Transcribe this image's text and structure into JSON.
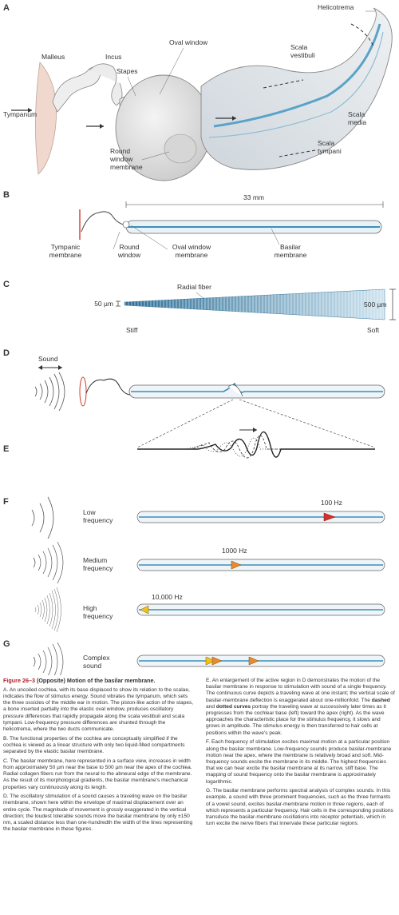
{
  "panels": {
    "a": {
      "letter": "A",
      "labels": {
        "helicotrema": "Helicotrema",
        "malleus": "Malleus",
        "incus": "Incus",
        "oval_window": "Oval window",
        "stapes": "Stapes",
        "scala_vestibuli": "Scala\nvestibuli",
        "tympanum": "Tympanum",
        "scala_media": "Scala\nmedia",
        "round_window_membrane": "Round\nwindow\nmembrane",
        "scala_tympani": "Scala\ntympani"
      }
    },
    "b": {
      "letter": "B",
      "length": "33 mm",
      "labels": {
        "tympanic_membrane": "Tympanic\nmembrane",
        "round_window": "Round\nwindow",
        "oval_window_membrane": "Oval window\nmembrane",
        "basilar_membrane": "Basilar\nmembrane"
      }
    },
    "c": {
      "letter": "C",
      "radial_fiber": "Radial fiber",
      "width_base": "50 µm",
      "width_apex": "500 µm",
      "stiff": "Stiff",
      "soft": "Soft"
    },
    "d": {
      "letter": "D",
      "sound": "Sound"
    },
    "e": {
      "letter": "E"
    },
    "f": {
      "letter": "F",
      "rows": [
        {
          "label": "Low\nfrequency",
          "freq": "100 Hz",
          "color": "#d62f2f"
        },
        {
          "label": "Medium\nfrequency",
          "freq": "1000 Hz",
          "color": "#ea8a2a"
        },
        {
          "label": "High\nfrequency",
          "freq": "10,000 Hz",
          "color": "#f2c21a"
        }
      ]
    },
    "g": {
      "letter": "G",
      "label": "Complex\nsound"
    }
  },
  "caption": {
    "title": "Figure 26–3",
    "title_rest": "(Opposite) Motion of the basilar membrane.",
    "a": "A. An uncoiled cochlea, with its base displaced to show its relation to the scalae, indicates the flow of stimulus energy. Sound vibrates the tympanum, which sets the three ossicles of the middle ear in motion. The piston-like action of the stapes, a bone inserted partially into the elastic oval window, produces oscillatory pressure differences that rapidly propagate along the scala vestibuli and scala tympani. Low-frequency pressure differences are shunted through the helicotrema, where the two ducts communicate.",
    "b": "B. The functional properties of the cochlea are conceptually simplified if the cochlea is viewed as a linear structure with only two liquid-filled compartments separated by the elastic basilar membrane.",
    "c": "C. The basilar membrane, here represented in a surface view, increases in width from approximately 50 µm near the base to 500 µm near the apex of the cochlea. Radial collagen fibers run from the neural to the abneural edge of the membrane. As the result of its morphological gradients, the basilar membrane's mechanical properties vary continuously along its length.",
    "d": "D. The oscillatory stimulation of a sound causes a traveling wave on the basilar membrane, shown here within the envelope of maximal displacement over an entire cycle. The magnitude of movement is grossly exaggerated in the vertical direction; the loudest tolerable sounds move the basilar membrane by only ±150 nm, a scaled distance less than one-hundredth the width of the lines representing the basilar membrane in these figures.",
    "e_pre": "E. An enlargement of the active region in D demonstrates the motion of the basilar membrane in response to stimulation with sound of a single frequency. The continuous curve depicts a traveling wave at one instant; the vertical scale of basilar-membrane deflection is exaggerated about one-millionfold. The",
    "e_dashed": "dashed",
    "e_and": "and",
    "e_dotted": "dotted curves",
    "e_post": "portray the traveling wave at successively later times as it progresses from the cochlear base (left) toward the apex (right). As the wave approaches the characteristic place for the stimulus frequency, it slows and grows in amplitude. The stimulus energy is then transferred to hair cells at positions within the wave's peak.",
    "f": "F. Each frequency of stimulation excites maximal motion at a particular position along the basilar membrane. Low-frequency sounds produce basilar-membrane motion near the apex, where the membrane is relatively broad and soft. Mid-frequency sounds excite the membrane in its middle. The highest frequencies that we can hear excite the basilar membrane at its narrow, stiff base. The mapping of sound frequency onto the basilar membrane is approximately logarithmic.",
    "g": "G. The basilar membrane performs spectral analysis of complex sounds. In this example, a sound with three prominent frequencies, such as the three formants of a vowel sound, excites basilar-membrane motion in three regions, each of which represents a particular frequency. Hair cells in the corresponding positions transduce the basilar-membrane oscillations into receptor potentials, which in turn excite the nerve fibers that innervate these particular regions."
  }
}
